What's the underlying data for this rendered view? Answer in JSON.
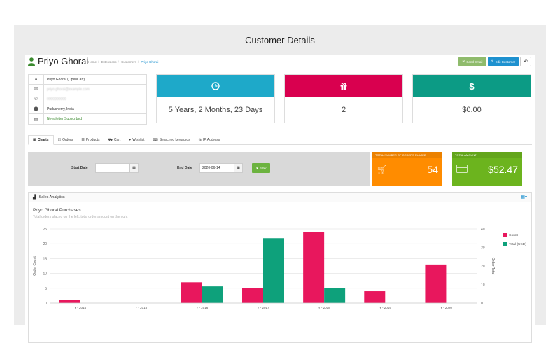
{
  "page_heading": "Customer Details",
  "header": {
    "name": "Priyo Ghorai",
    "breadcrumbs": [
      "Home",
      "Extensions",
      "Customers",
      "Priyo Ghorai"
    ],
    "send_email_label": "Send Email",
    "edit_customer_label": "Edit Customer",
    "back_icon": "reply-icon"
  },
  "info": {
    "name": "Priyo Ghorai (OpenCart)",
    "email": "priyo.ghorai@example.com",
    "phone": "0000000000",
    "location": "Puducherry, India",
    "newsletter": "Newsletter Subscribed"
  },
  "tiles": [
    {
      "icon": "clock-icon",
      "value": "5 Years, 2 Months, 23 Days",
      "color": "#1ea9c9"
    },
    {
      "icon": "gift-icon",
      "value": "2",
      "color": "#d9004f"
    },
    {
      "icon": "dollar-icon",
      "value": "$0.00",
      "color": "#0c9b85"
    }
  ],
  "tabs": [
    {
      "label": "Charts",
      "icon": "bar-chart-icon",
      "active": true
    },
    {
      "label": "Orders",
      "icon": "check-square-icon"
    },
    {
      "label": "Products",
      "icon": "list-icon"
    },
    {
      "label": "Cart",
      "icon": "cart-icon"
    },
    {
      "label": "Wishlist",
      "icon": "heart-icon"
    },
    {
      "label": "Searched keywords",
      "icon": "keyboard-icon"
    },
    {
      "label": "IP Address",
      "icon": "globe-icon"
    }
  ],
  "filter": {
    "start_label": "Start Date",
    "start_value": "",
    "end_label": "End Date",
    "end_value": "2020-06-14",
    "filter_label": "Filter"
  },
  "summary": {
    "orders_title": "TOTAL NUMBER OF ORDERS PLACED",
    "orders_value": "54",
    "orders_color": "#ff8c00",
    "amount_title": "TOTAL AMOUNT",
    "amount_value": "$52.47",
    "amount_color": "#6cb41e"
  },
  "analytics": {
    "panel_title": "Sales Analytics",
    "chart_title": "Priyo Ghorai Purchases",
    "chart_subtitle": "Total orders placed on the left, total order amount on the right"
  },
  "chart_data": {
    "type": "bar",
    "categories": [
      "Y - 2014",
      "Y - 2015",
      "Y - 2016",
      "Y - 2017",
      "Y - 2018",
      "Y - 2019",
      "Y - 2020"
    ],
    "series": [
      {
        "name": "Count",
        "axis": "left",
        "color": "#e8175d",
        "values": [
          1,
          0,
          7,
          5,
          24,
          4,
          13
        ]
      },
      {
        "name": "Total (USD)",
        "axis": "right",
        "color": "#0ea17b",
        "values": [
          0,
          0,
          9,
          35,
          8,
          0,
          0
        ]
      }
    ],
    "ylabel": "Order Count",
    "y2label": "Order Total",
    "ylim": [
      0,
      25
    ],
    "y2lim": [
      0,
      40
    ],
    "yticks": [
      0,
      5,
      10,
      15,
      20,
      25
    ],
    "y2ticks": [
      0,
      10,
      20,
      30,
      40
    ],
    "legend": "right",
    "grid": true
  }
}
